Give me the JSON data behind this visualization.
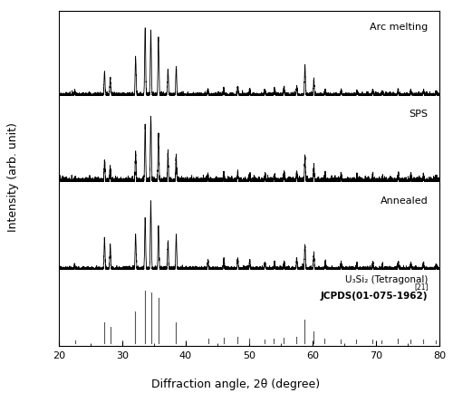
{
  "xlim": [
    20,
    80
  ],
  "xlabel": "Diffraction angle, 2θ (degree)",
  "ylabel": "Intensity (arb. unit)",
  "labels": [
    "Arc melting",
    "SPS",
    "Annealed"
  ],
  "ref_label1": "U₃Si₂ (Tetragonal)",
  "ref_label2": "JCPDS(01-075-1962)",
  "ref_superscript": "[21]",
  "peak_positions": [
    22.5,
    27.2,
    28.1,
    32.1,
    33.6,
    34.5,
    35.7,
    37.2,
    38.5,
    43.5,
    46.0,
    48.2,
    50.1,
    52.5,
    54.0,
    55.5,
    57.5,
    58.8,
    60.2,
    62.0,
    64.5,
    67.0,
    69.5,
    71.0,
    73.5,
    75.5,
    77.5,
    79.5
  ],
  "peak_intensities_arc": [
    0.05,
    0.35,
    0.25,
    0.55,
    1.0,
    0.95,
    0.85,
    0.38,
    0.4,
    0.08,
    0.1,
    0.12,
    0.08,
    0.07,
    0.08,
    0.1,
    0.12,
    0.45,
    0.22,
    0.08,
    0.07,
    0.06,
    0.07,
    0.05,
    0.08,
    0.06,
    0.07,
    0.05
  ],
  "peak_intensities_sps": [
    0.04,
    0.3,
    0.22,
    0.45,
    0.85,
    1.0,
    0.75,
    0.42,
    0.38,
    0.1,
    0.12,
    0.15,
    0.1,
    0.1,
    0.09,
    0.13,
    0.15,
    0.38,
    0.2,
    0.1,
    0.09,
    0.08,
    0.09,
    0.07,
    0.1,
    0.07,
    0.08,
    0.06
  ],
  "peak_intensities_ann": [
    0.04,
    0.45,
    0.35,
    0.5,
    0.75,
    1.0,
    0.65,
    0.4,
    0.5,
    0.12,
    0.14,
    0.15,
    0.12,
    0.1,
    0.1,
    0.12,
    0.15,
    0.35,
    0.22,
    0.1,
    0.09,
    0.08,
    0.09,
    0.07,
    0.1,
    0.07,
    0.08,
    0.06
  ],
  "ref_peaks": [
    22.5,
    27.2,
    28.1,
    32.0,
    33.6,
    34.5,
    35.7,
    38.4,
    43.5,
    46.0,
    48.1,
    50.0,
    52.4,
    53.9,
    55.4,
    57.4,
    58.7,
    60.1,
    61.8,
    64.4,
    66.9,
    69.4,
    70.9,
    73.4,
    75.4,
    77.4,
    79.4
  ],
  "ref_intensities": [
    0.05,
    0.4,
    0.3,
    0.6,
    1.0,
    0.95,
    0.85,
    0.4,
    0.08,
    0.1,
    0.12,
    0.08,
    0.07,
    0.08,
    0.1,
    0.12,
    0.45,
    0.22,
    0.08,
    0.07,
    0.06,
    0.07,
    0.05,
    0.08,
    0.06,
    0.07,
    0.05
  ],
  "line_color": "#000000",
  "background_color": "#ffffff",
  "panel_bg": "#ffffff",
  "noise_seed": 42
}
